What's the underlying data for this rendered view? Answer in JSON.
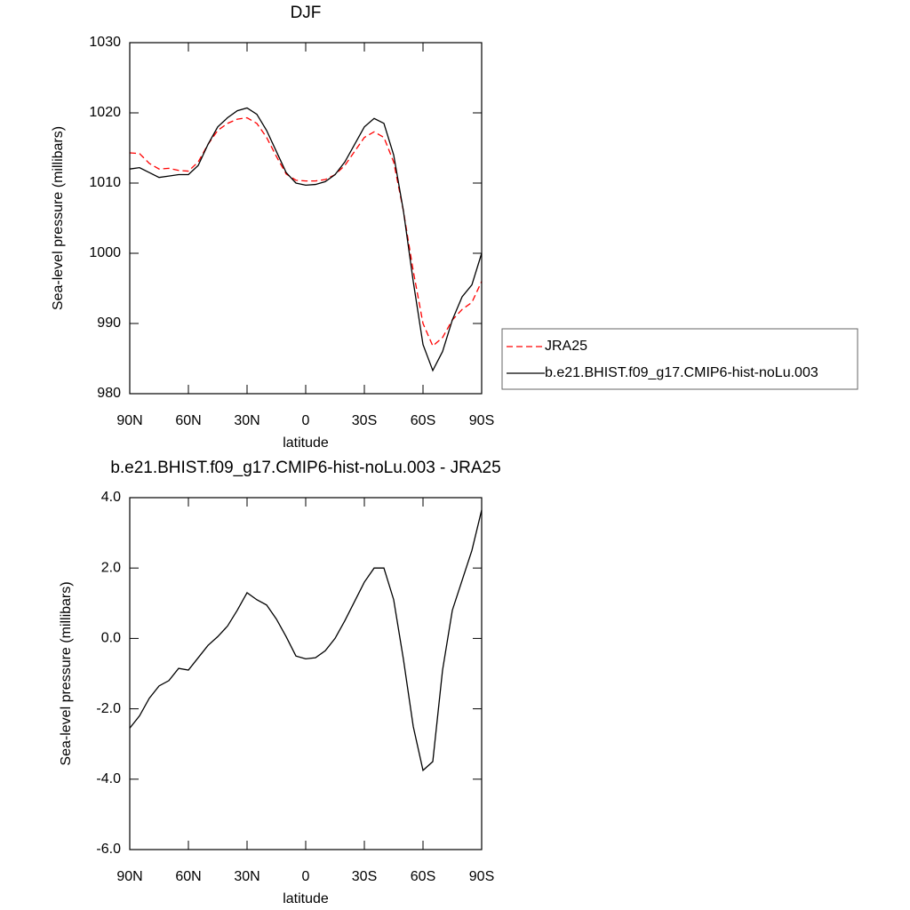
{
  "chart_data": [
    {
      "type": "line",
      "title": "DJF",
      "xlabel": "latitude",
      "ylabel": "Sea-level pressure (millibars)",
      "x": [
        90,
        85,
        80,
        75,
        70,
        65,
        60,
        55,
        50,
        45,
        40,
        35,
        30,
        25,
        20,
        15,
        10,
        5,
        0,
        -5,
        -10,
        -15,
        -20,
        -25,
        -30,
        -35,
        -40,
        -45,
        -50,
        -55,
        -60,
        -65,
        -70,
        -75,
        -80,
        -85,
        -90
      ],
      "xlim": [
        90,
        -90
      ],
      "xticks": [
        {
          "value": 90,
          "label": "90N"
        },
        {
          "value": 60,
          "label": "60N"
        },
        {
          "value": 30,
          "label": "30N"
        },
        0,
        {
          "value": -30,
          "label": "30S"
        },
        {
          "value": -60,
          "label": "60S"
        },
        {
          "value": -90,
          "label": "90S"
        }
      ],
      "ylim": [
        980,
        1030
      ],
      "yticks": [
        980,
        990,
        1000,
        1010,
        1020,
        1030
      ],
      "legend": "right",
      "series": [
        {
          "name": "JRA25",
          "color": "#ff0000",
          "dash": true,
          "values": [
            1014.3,
            1014.2,
            1012.8,
            1012.0,
            1012.1,
            1011.8,
            1011.7,
            1013,
            1015.5,
            1017.5,
            1018.5,
            1019.1,
            1019.3,
            1018.5,
            1016.5,
            1013.8,
            1011.3,
            1010.4,
            1010.3,
            1010.3,
            1010.5,
            1011.2,
            1012.5,
            1014.5,
            1016.5,
            1017.3,
            1016.5,
            1013,
            1006,
            997.5,
            990,
            986.8,
            988,
            990.5,
            992,
            993,
            996
          ]
        },
        {
          "name": "b.e21.BHIST.f09_g17.CMIP6-hist-noLu.003",
          "color": "#000000",
          "dash": false,
          "values": [
            1012,
            1012.2,
            1011.5,
            1010.8,
            1011.0,
            1011.2,
            1011.2,
            1012.5,
            1015.5,
            1018,
            1019.3,
            1020.3,
            1020.7,
            1019.8,
            1017.5,
            1014.5,
            1011.5,
            1010,
            1009.7,
            1009.8,
            1010.2,
            1011.2,
            1013,
            1015.5,
            1018,
            1019.2,
            1018.5,
            1014,
            1006,
            996,
            987,
            983.3,
            986,
            990.5,
            993.8,
            995.5,
            1000
          ]
        }
      ]
    },
    {
      "type": "line",
      "title": "b.e21.BHIST.f09_g17.CMIP6-hist-noLu.003 - JRA25",
      "xlabel": "latitude",
      "ylabel": "Sea-level pressure (millibars)",
      "x": [
        90,
        85,
        80,
        75,
        70,
        65,
        60,
        55,
        50,
        45,
        40,
        35,
        30,
        25,
        20,
        15,
        10,
        5,
        0,
        -5,
        -10,
        -15,
        -20,
        -25,
        -30,
        -35,
        -40,
        -45,
        -50,
        -55,
        -60,
        -65,
        -70,
        -75,
        -80,
        -85,
        -90
      ],
      "xlim": [
        90,
        -90
      ],
      "xticks": [
        {
          "value": 90,
          "label": "90N"
        },
        {
          "value": 60,
          "label": "60N"
        },
        {
          "value": 30,
          "label": "30N"
        },
        0,
        {
          "value": -30,
          "label": "30S"
        },
        {
          "value": -60,
          "label": "60S"
        },
        {
          "value": -90,
          "label": "90S"
        }
      ],
      "ylim": [
        -6,
        4
      ],
      "yticks": [
        {
          "value": -6,
          "label": "-6.0"
        },
        {
          "value": -4,
          "label": "-4.0"
        },
        {
          "value": -2,
          "label": "-2.0"
        },
        {
          "value": 0,
          "label": "0.0"
        },
        {
          "value": 2,
          "label": "2.0"
        },
        {
          "value": 4,
          "label": "4.0"
        }
      ],
      "series": [
        {
          "color": "#000000",
          "dash": false,
          "values": [
            -2.55,
            -2.2,
            -1.7,
            -1.35,
            -1.2,
            -0.85,
            -0.9,
            -0.55,
            -0.2,
            0.05,
            0.35,
            0.8,
            1.3,
            1.1,
            0.95,
            0.55,
            0.05,
            -0.5,
            -0.58,
            -0.55,
            -0.35,
            0.0,
            0.5,
            1.05,
            1.6,
            2.0,
            2.0,
            1.1,
            -0.6,
            -2.5,
            -3.75,
            -3.5,
            -0.9,
            0.8,
            1.65,
            2.5,
            3.65
          ]
        }
      ]
    }
  ]
}
